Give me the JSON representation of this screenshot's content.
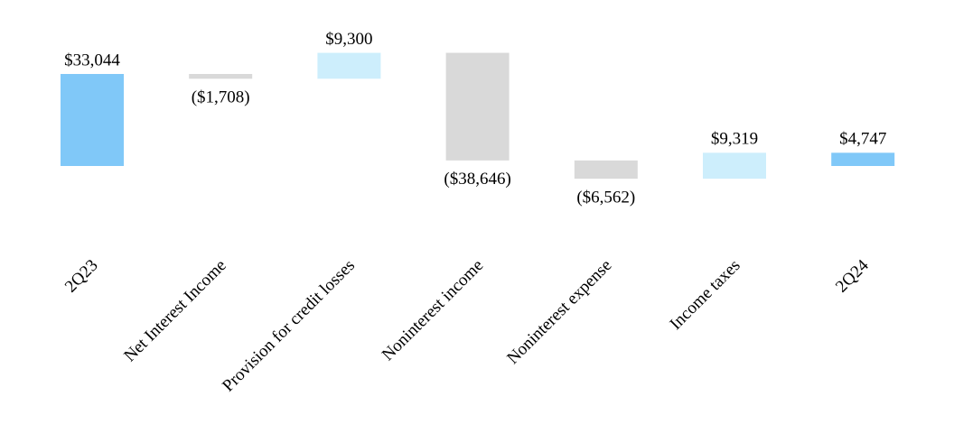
{
  "chart_data": {
    "type": "waterfall",
    "categories": [
      "2Q23",
      "Net Interest Income",
      "Provision for credit losses",
      "Noninterest income",
      "Noninterest expense",
      "Income taxes",
      "2Q24"
    ],
    "measures": [
      "total",
      "relative",
      "relative",
      "relative",
      "relative",
      "relative",
      "total"
    ],
    "values": [
      33044,
      -1708,
      9300,
      -38646,
      -6562,
      9319,
      4747
    ],
    "value_labels": [
      "$33,044",
      "($1,708)",
      "$9,300",
      "($38,646)",
      "($6,562)",
      "$9,319",
      "$4,747"
    ],
    "colors": [
      "#80c8f8",
      "#d9d9d9",
      "#cdeefc",
      "#d9d9d9",
      "#d9d9d9",
      "#cdeefc",
      "#80c8f8"
    ]
  }
}
